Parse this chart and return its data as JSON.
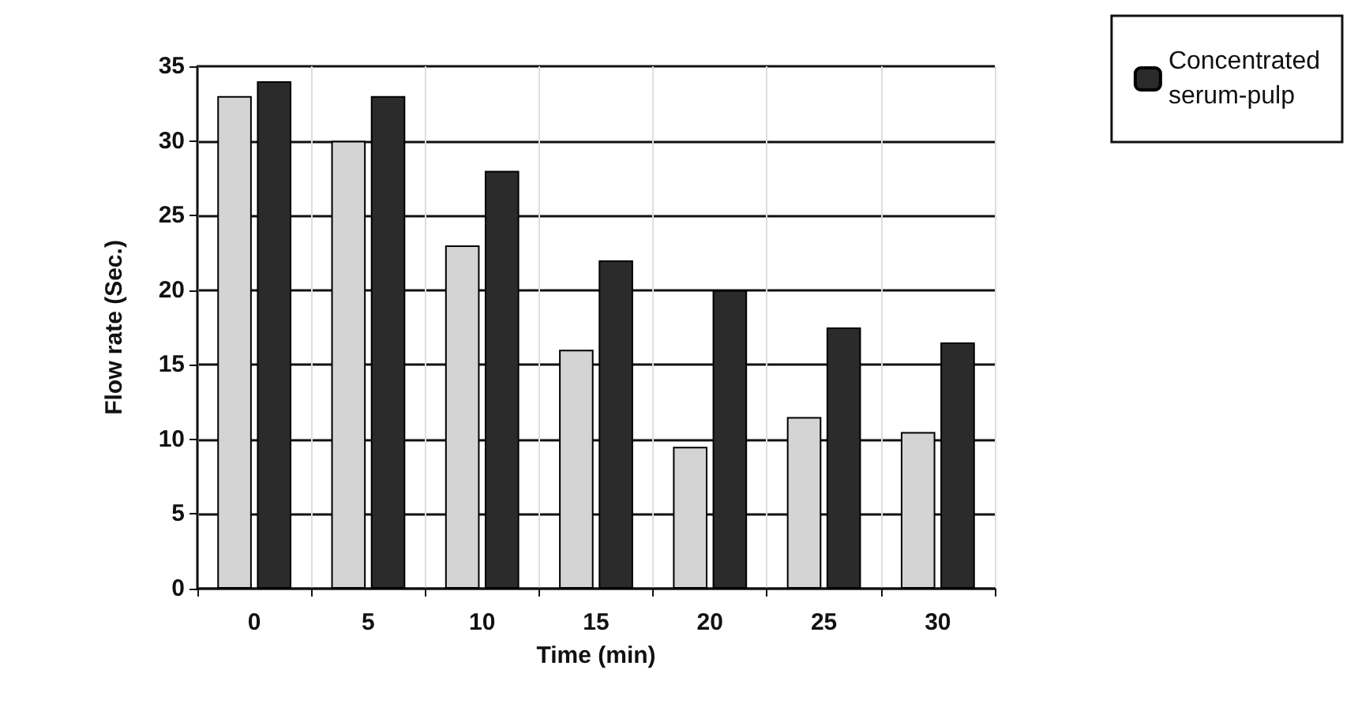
{
  "chart_data": {
    "type": "bar",
    "xlabel": "Time (min)",
    "ylabel": "Flow rate (Sec.)",
    "categories": [
      "0",
      "5",
      "10",
      "15",
      "20",
      "25",
      "30"
    ],
    "series": [
      {
        "color": "#d4d4d4",
        "values": [
          33,
          30,
          23,
          16,
          9.5,
          11.5,
          10.5
        ]
      },
      {
        "name": "Concentrated serum-pulp",
        "color": "#2b2b2b",
        "values": [
          34,
          33,
          28,
          22,
          20,
          17.5,
          16.5
        ]
      }
    ],
    "ylim": [
      0,
      35
    ],
    "yticks": [
      0,
      5,
      10,
      15,
      20,
      25,
      30,
      35
    ],
    "grid": true,
    "legend": "top right"
  }
}
